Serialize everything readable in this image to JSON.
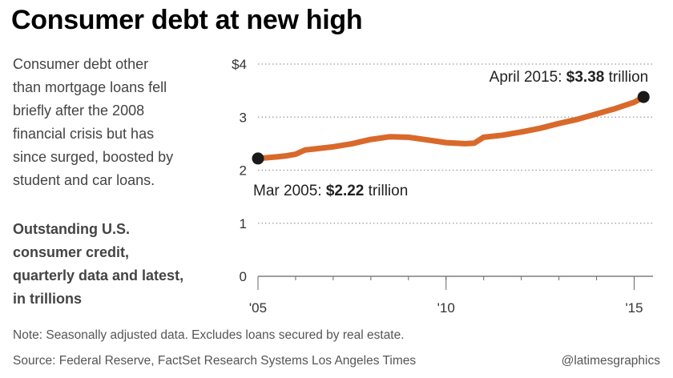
{
  "header": {
    "title": "Consumer debt at new high"
  },
  "intro_lines": [
    "Consumer debt other",
    "than mortgage loans fell",
    "briefly after the 2008",
    "financial crisis but has",
    "since surged, boosted by",
    "student and car loans."
  ],
  "subtitle_lines": [
    "Outstanding U.S.",
    "consumer credit,",
    "quarterly data and latest,",
    "in trillions"
  ],
  "footer": {
    "note": "Note: Seasonally adjusted data. Excludes loans secured by real estate.",
    "source": "Source: Federal Reserve, FactSet Research Systems Los Angeles Times",
    "credit": "@latimesgraphics"
  },
  "chart_data": {
    "type": "line",
    "title": "Consumer debt at new high",
    "ylabel": "",
    "xlabel": "",
    "ylim": [
      0,
      4
    ],
    "xlim": [
      2005.0,
      2015.5
    ],
    "y_ticks": [
      {
        "value": 0,
        "label": "0"
      },
      {
        "value": 1,
        "label": "1"
      },
      {
        "value": 2,
        "label": "2"
      },
      {
        "value": 3,
        "label": "3"
      },
      {
        "value": 4,
        "label": "$4"
      }
    ],
    "x_ticks": [
      {
        "value": 2005,
        "label": "'05"
      },
      {
        "value": 2010,
        "label": "'10"
      },
      {
        "value": 2015,
        "label": "'15"
      }
    ],
    "grid": true,
    "line_color": "#d9692b",
    "marker_color": "#1a1a1a",
    "series": [
      {
        "values": [
          {
            "x": 2005.0,
            "y": 2.22
          },
          {
            "x": 2005.5,
            "y": 2.25
          },
          {
            "x": 2005.75,
            "y": 2.27
          },
          {
            "x": 2006.0,
            "y": 2.3
          },
          {
            "x": 2006.25,
            "y": 2.38
          },
          {
            "x": 2006.5,
            "y": 2.4
          },
          {
            "x": 2007.0,
            "y": 2.44
          },
          {
            "x": 2007.5,
            "y": 2.5
          },
          {
            "x": 2008.0,
            "y": 2.58
          },
          {
            "x": 2008.5,
            "y": 2.63
          },
          {
            "x": 2009.0,
            "y": 2.62
          },
          {
            "x": 2009.5,
            "y": 2.57
          },
          {
            "x": 2010.0,
            "y": 2.52
          },
          {
            "x": 2010.5,
            "y": 2.5
          },
          {
            "x": 2010.75,
            "y": 2.51
          },
          {
            "x": 2011.0,
            "y": 2.62
          },
          {
            "x": 2011.5,
            "y": 2.66
          },
          {
            "x": 2012.0,
            "y": 2.72
          },
          {
            "x": 2012.5,
            "y": 2.79
          },
          {
            "x": 2013.0,
            "y": 2.88
          },
          {
            "x": 2013.5,
            "y": 2.96
          },
          {
            "x": 2014.0,
            "y": 3.06
          },
          {
            "x": 2014.5,
            "y": 3.16
          },
          {
            "x": 2015.0,
            "y": 3.28
          },
          {
            "x": 2015.25,
            "y": 3.38
          }
        ]
      }
    ],
    "annotations": [
      {
        "label": "Mar 2005: ",
        "value_label": "$2.22",
        "unit": " trillion",
        "x": 2005.0,
        "y": 2.22
      },
      {
        "label": "April 2015: ",
        "value_label": "$3.38",
        "unit": " trillion",
        "x": 2015.25,
        "y": 3.38
      }
    ]
  }
}
